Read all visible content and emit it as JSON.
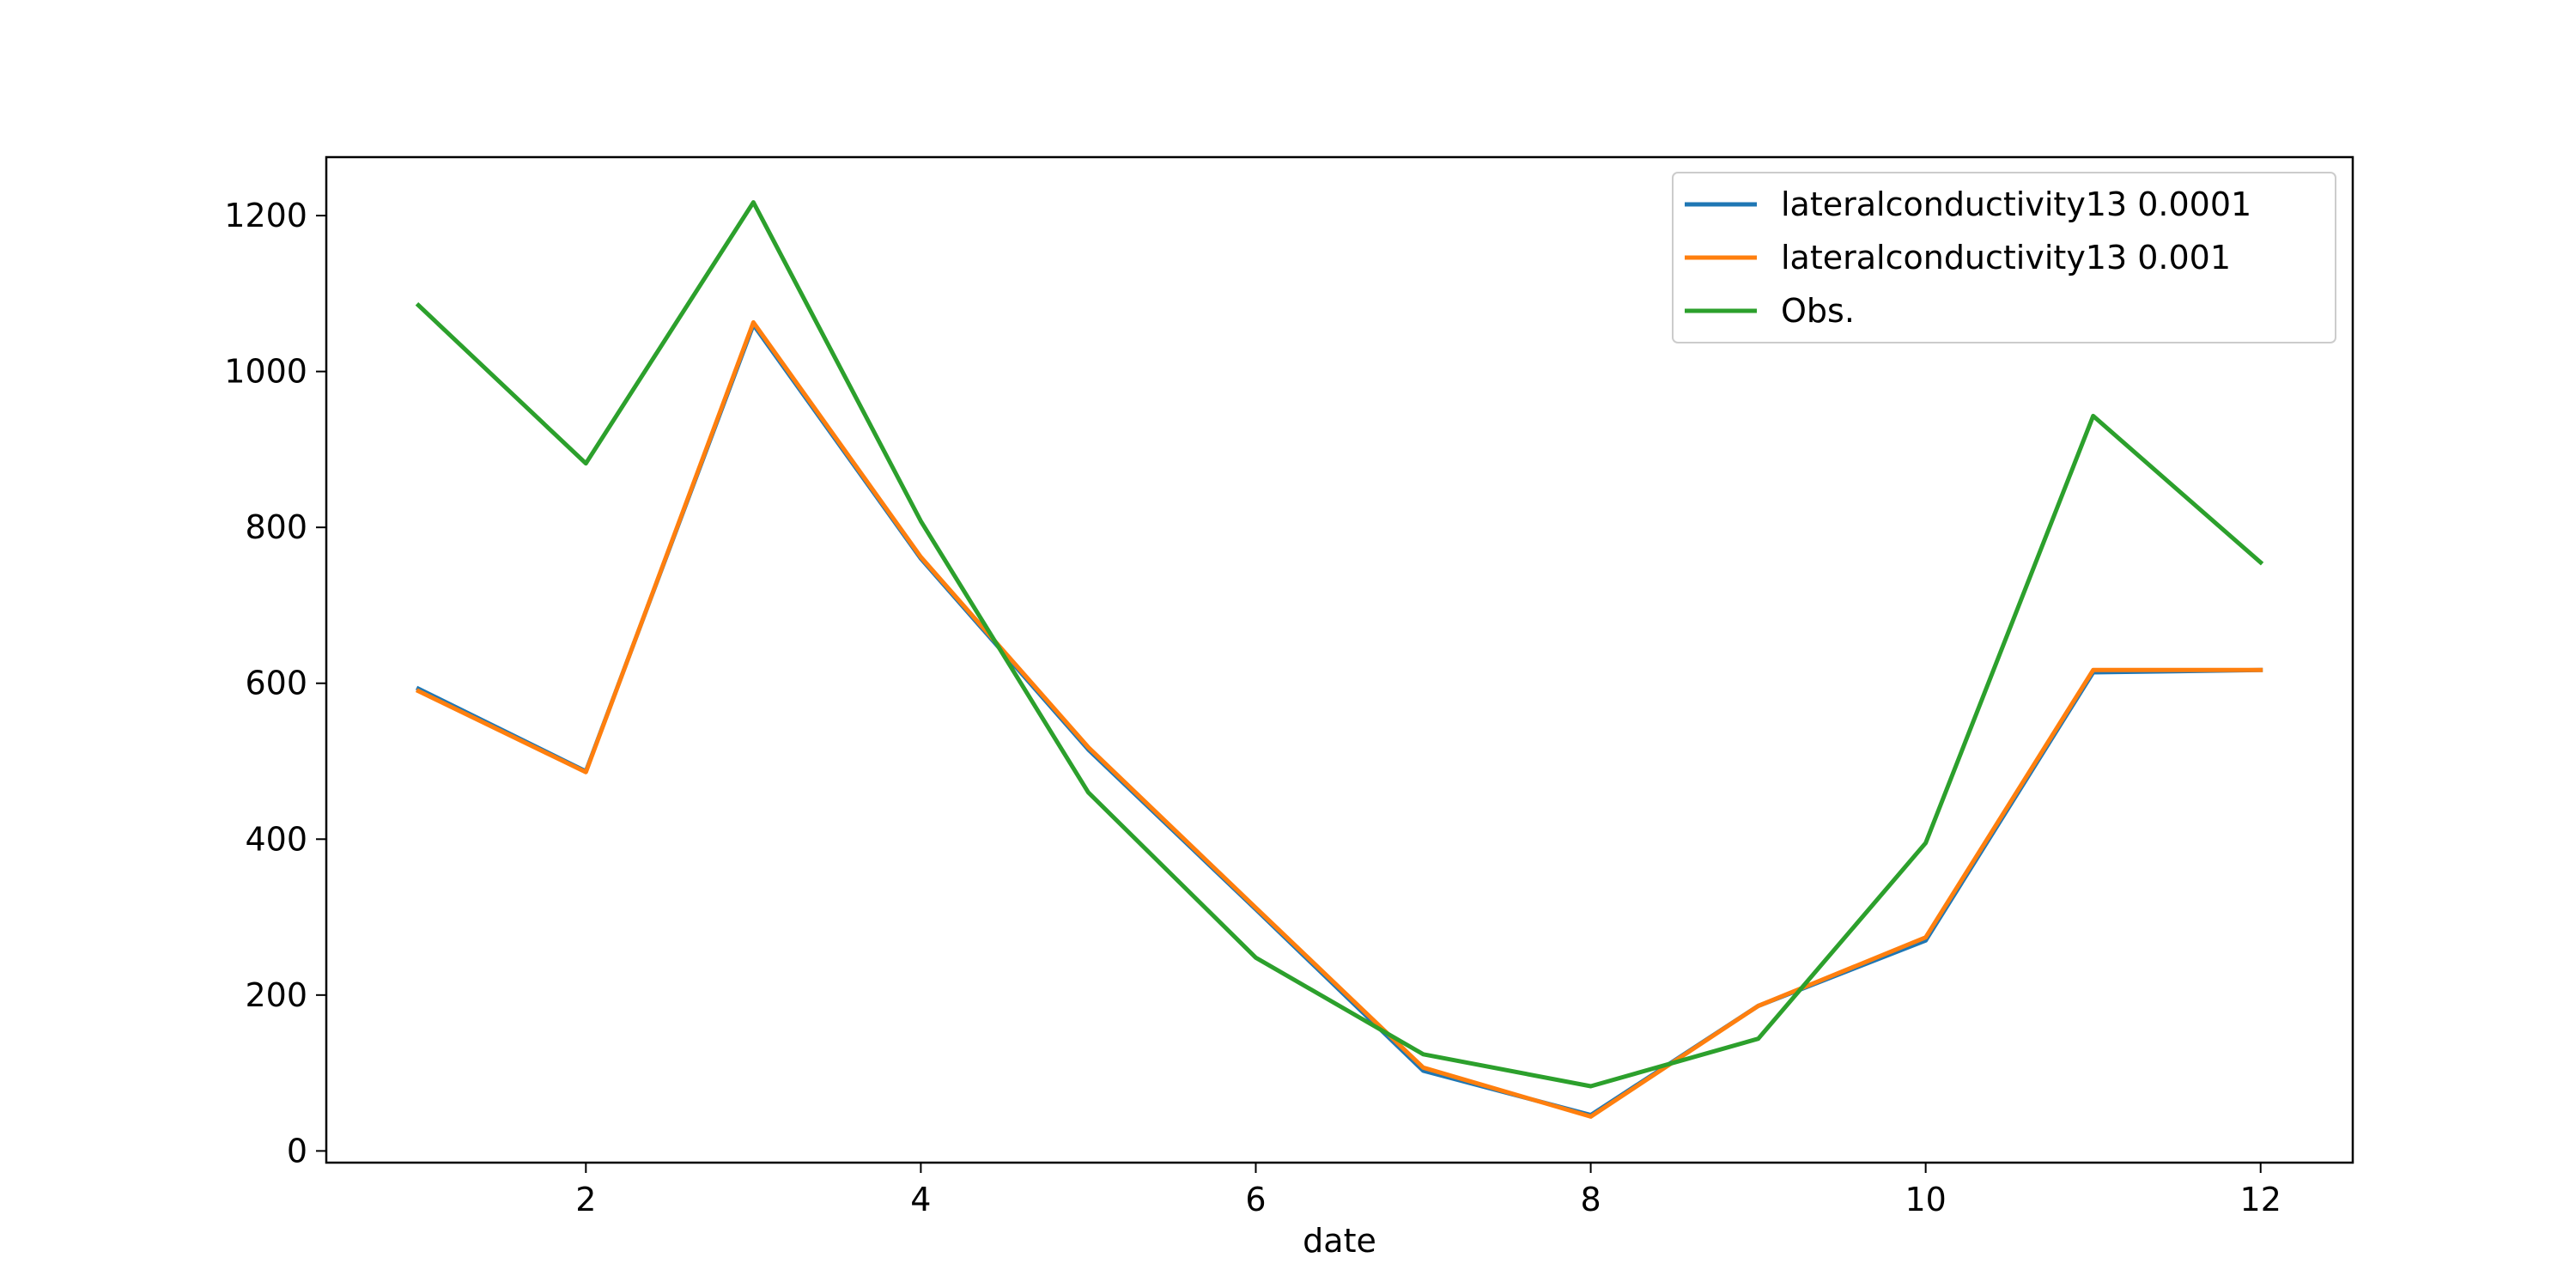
{
  "chart_data": {
    "type": "line",
    "title": "",
    "xlabel": "date",
    "ylabel": "",
    "xlim": [
      0.45,
      12.55
    ],
    "ylim": [
      -15,
      1275
    ],
    "xticks": [
      2,
      4,
      6,
      8,
      10,
      12
    ],
    "yticks": [
      0,
      200,
      400,
      600,
      800,
      1000,
      1200
    ],
    "grid": false,
    "legend_position": "top-right",
    "x": [
      1,
      2,
      3,
      4,
      5,
      6,
      7,
      8,
      9,
      10,
      11,
      12
    ],
    "series": [
      {
        "name": "lateralconductivity13 0.0001",
        "color": "#1f77b4",
        "values": [
          593,
          487,
          1060,
          760,
          515,
          310,
          103,
          46,
          186,
          270,
          614,
          617
        ]
      },
      {
        "name": "lateralconductivity13 0.001",
        "color": "#ff7f0e",
        "values": [
          590,
          486,
          1063,
          762,
          518,
          312,
          107,
          44,
          186,
          274,
          617,
          617
        ]
      },
      {
        "name": "Obs.",
        "color": "#2ca02c",
        "values": [
          1085,
          882,
          1217,
          808,
          460,
          248,
          124,
          83,
          144,
          395,
          943,
          755
        ]
      }
    ]
  }
}
